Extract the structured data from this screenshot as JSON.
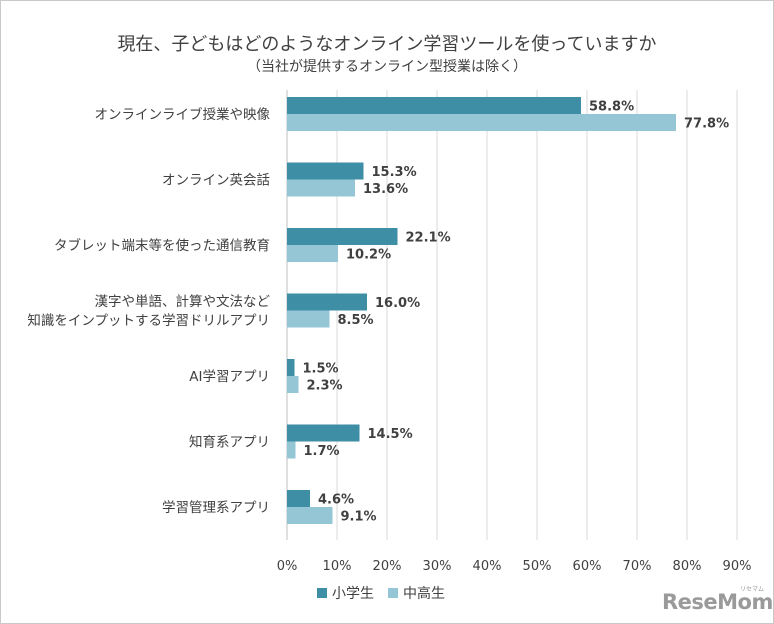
{
  "chart_data": {
    "type": "bar",
    "orientation": "horizontal",
    "title": "現在、子どもはどのようなオンライン学習ツールを使っていますか",
    "subtitle": "（当社が提供するオンライン型授業は除く）",
    "categories": [
      [
        "オンラインライブ授業や映像"
      ],
      [
        "オンライン英会話"
      ],
      [
        "タブレット端末等を使った通信教育"
      ],
      [
        "漢字や単語、計算や文法など",
        "知識をインプットする学習ドリルアプリ"
      ],
      [
        "AI学習アプリ"
      ],
      [
        "知育系アプリ"
      ],
      [
        "学習管理系アプリ"
      ]
    ],
    "series": [
      {
        "name": "小学生",
        "color": "#3e8ea6",
        "values": [
          58.8,
          15.3,
          22.1,
          16.0,
          1.5,
          14.5,
          4.6
        ],
        "labels": [
          "58.8%",
          "15.3%",
          "22.1%",
          "16.0%",
          "1.5%",
          "14.5%",
          "4.6%"
        ]
      },
      {
        "name": "中高生",
        "color": "#95c6d6",
        "values": [
          77.8,
          13.6,
          10.2,
          8.5,
          2.3,
          1.7,
          9.1
        ],
        "labels": [
          "77.8%",
          "13.6%",
          "10.2%",
          "8.5%",
          "2.3%",
          "1.7%",
          "9.1%"
        ]
      }
    ],
    "xlim": [
      0,
      90
    ],
    "xticks": [
      0,
      10,
      20,
      30,
      40,
      50,
      60,
      70,
      80,
      90
    ],
    "xtick_labels": [
      "0%",
      "10%",
      "20%",
      "30%",
      "40%",
      "50%",
      "60%",
      "70%",
      "80%",
      "90%"
    ],
    "grid": true,
    "legend": "bottom"
  },
  "watermark": {
    "text": "ReseMom",
    "small_text": "リセマム"
  }
}
